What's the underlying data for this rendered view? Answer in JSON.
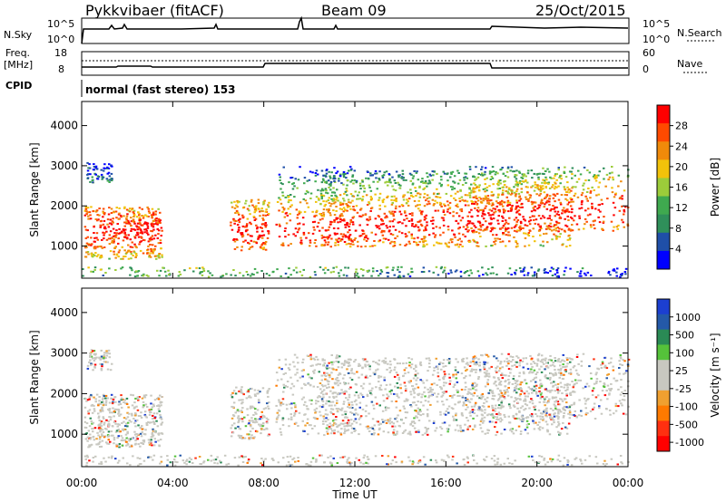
{
  "header": {
    "station": "Pykkvibaer (fitACF)",
    "beam": "Beam 09",
    "date": "25/Oct/2015"
  },
  "panels": {
    "nsky": {
      "label": "N.Sky",
      "y_ticks": [
        "10^5",
        "10^0"
      ],
      "right_label": "N.Search",
      "right_ticks": [
        "10^5",
        "10^0"
      ]
    },
    "freq": {
      "label_line1": "Freq.",
      "label_line2": "[MHz]",
      "y_ticks": [
        "18",
        "8"
      ],
      "right_label": "Nave",
      "right_ticks": [
        "60",
        "0"
      ]
    },
    "cpid": {
      "label": "CPID",
      "text": "normal (fast stereo) 153"
    }
  },
  "colors": {
    "power_scale": [
      "#0000ff",
      "#1f4fa8",
      "#2f8f5a",
      "#3fa94f",
      "#9ccc3a",
      "#f2c20a",
      "#f08a0a",
      "#ff4a00",
      "#ff0000"
    ],
    "velocity_scale": [
      "#1c3fd0",
      "#2459a8",
      "#2a8a55",
      "#55c23a",
      "#c8c8c0",
      "#c8c8c0",
      "#f0a030",
      "#ff7a00",
      "#ff3010",
      "#ff0000"
    ]
  },
  "chart_data": [
    {
      "type": "heatmap",
      "name_key": "power",
      "xlabel": "",
      "ylabel": "Slant Range [km]",
      "x_ticks": [
        "00:00",
        "04:00",
        "08:00",
        "12:00",
        "16:00",
        "20:00",
        "00:00"
      ],
      "y_ticks": [
        1000,
        2000,
        3000,
        4000
      ],
      "ylim": [
        200,
        4600
      ],
      "colorbar_label": "Power [dB]",
      "colorbar_ticks": [
        4,
        8,
        12,
        16,
        20,
        24,
        28
      ],
      "colorbar_range": [
        0,
        32
      ]
    },
    {
      "type": "heatmap",
      "name_key": "velocity",
      "xlabel": "Time UT",
      "ylabel": "Slant Range [km]",
      "x_ticks": [
        "00:00",
        "04:00",
        "08:00",
        "12:00",
        "16:00",
        "20:00",
        "00:00"
      ],
      "y_ticks": [
        1000,
        2000,
        3000,
        4000
      ],
      "ylim": [
        200,
        4600
      ],
      "colorbar_label": "Velocity [m s⁻¹]",
      "colorbar_ticks": [
        "1000",
        "500",
        "100",
        "25",
        "-25",
        "-100",
        "-500",
        "-1000"
      ]
    }
  ]
}
